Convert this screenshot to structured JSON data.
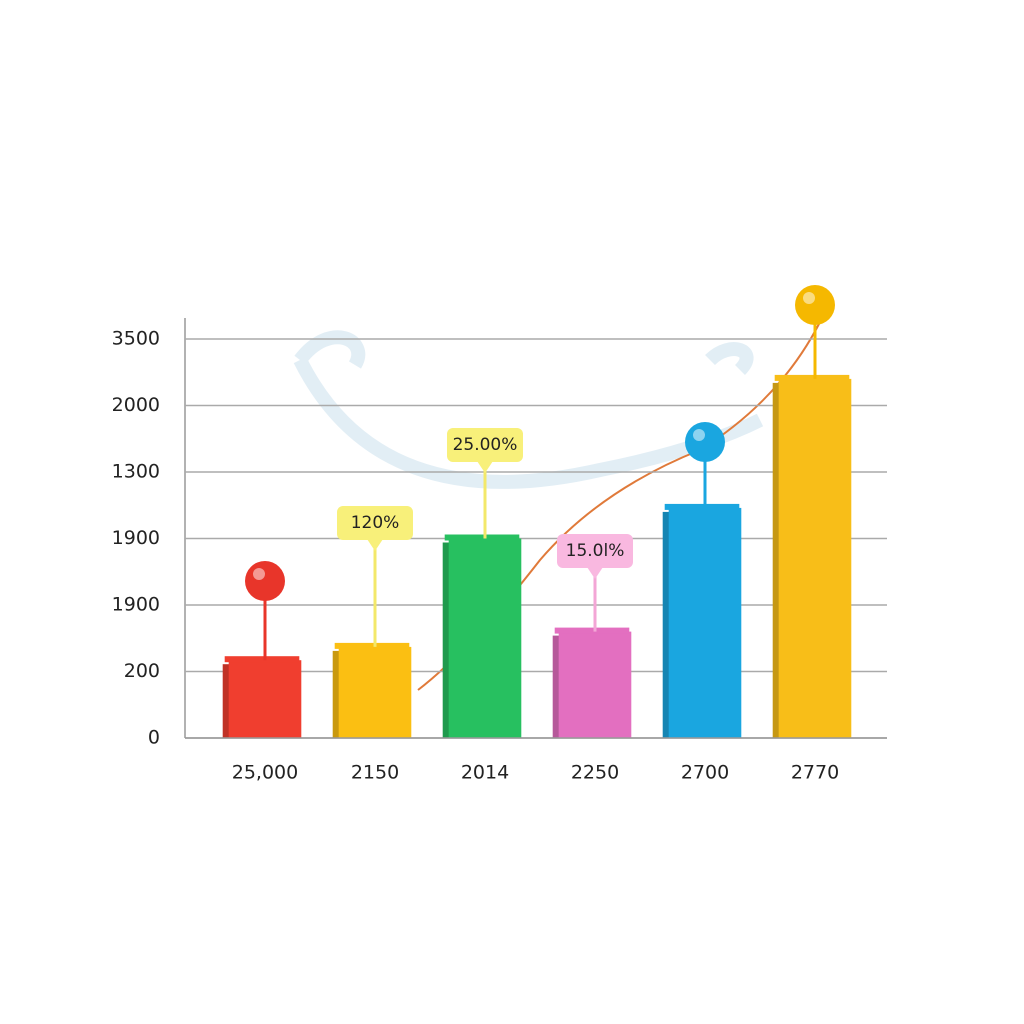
{
  "chart_data": {
    "type": "bar",
    "categories": [
      "25,000",
      "2150",
      "2014",
      "2250",
      "2700",
      "2770"
    ],
    "values": [
      1.17,
      1.37,
      3.0,
      1.6,
      3.46,
      5.4
    ],
    "colors": [
      "#f03e2f",
      "#fbbf12",
      "#27c060",
      "#e36fc0",
      "#1aa6e0",
      "#f8be18"
    ],
    "ylim": [
      0,
      6
    ],
    "yticks": [
      {
        "value": 0,
        "label": "0"
      },
      {
        "value": 1,
        "label": "200"
      },
      {
        "value": 2,
        "label": "1900"
      },
      {
        "value": 3,
        "label": "1900"
      },
      {
        "value": 4,
        "label": "1300"
      },
      {
        "value": 5,
        "label": "2000"
      },
      {
        "value": 6,
        "label": "3500"
      }
    ],
    "grid": true,
    "annotations": [
      "120%",
      "25.00%",
      "15.0l%"
    ]
  }
}
